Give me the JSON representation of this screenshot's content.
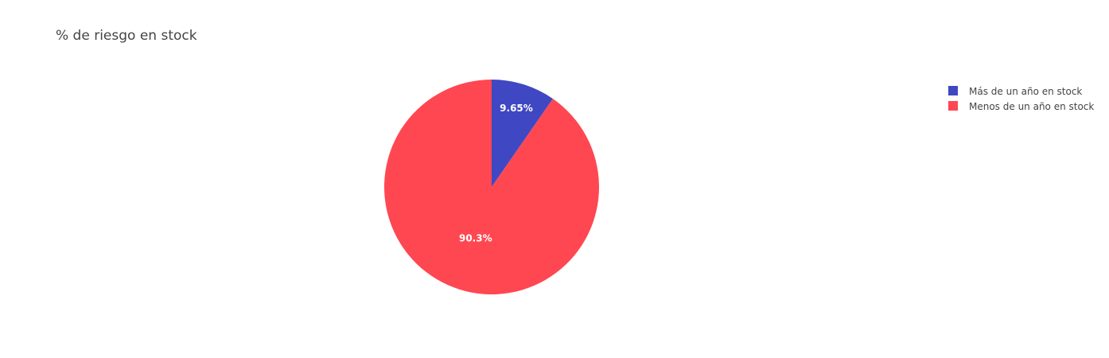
{
  "chart_data": {
    "type": "pie",
    "title": "% de riesgo en stock",
    "labels": [
      "Más de un año en stock",
      "Menos de un año en stock"
    ],
    "values": [
      9.65,
      90.3
    ],
    "text_labels": [
      "9.65%",
      "90.3%"
    ],
    "colors": [
      "#3f48c2",
      "#ff4752"
    ],
    "legend_position": "top-right",
    "direction": "clockwise",
    "start_angle": "12 o'clock"
  }
}
